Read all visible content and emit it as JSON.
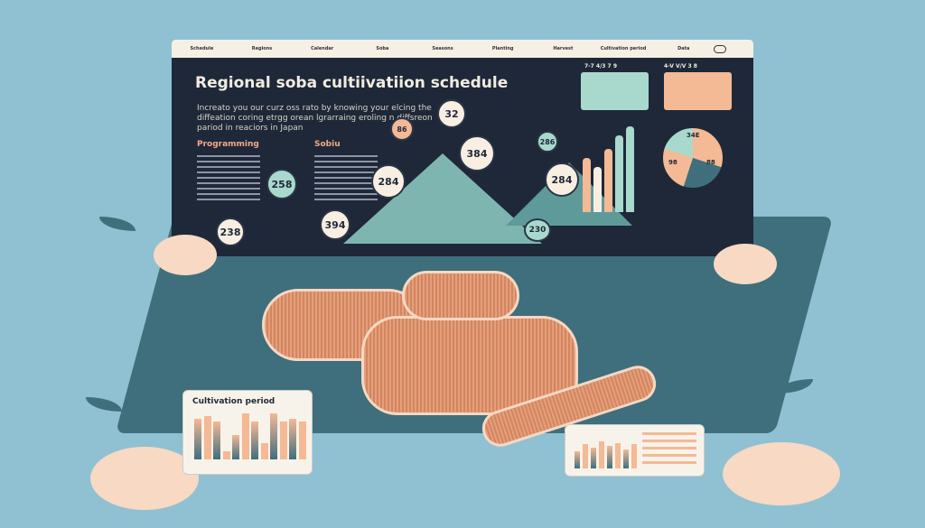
{
  "nav": {
    "items": [
      "Schedule",
      "Regions",
      "Calendar",
      "Soba",
      "Seasons",
      "Planting",
      "Harvest",
      "Cultivation period",
      "Data"
    ]
  },
  "header": {
    "title": "Regional soba cultiivatiion schedule",
    "subtitle": "Increato you our curz oss rato by knowing your elcing the diffeation coring etrgg orean lgrarraing eroling n diffsreon pariod in reaciors in Japan"
  },
  "sections": [
    {
      "label": "Programming"
    },
    {
      "label": "Sobiu"
    }
  ],
  "bubbles": [
    "32",
    "86",
    "384",
    "284",
    "258",
    "394",
    "284",
    "286",
    "238",
    "230"
  ],
  "calendars": [
    {
      "label": "7-7 4/3 7 9",
      "color": "#a9d9cc"
    },
    {
      "label": "4-V V/V 3 8",
      "color": "#f4b995"
    }
  ],
  "pie": {
    "labels": [
      "34E",
      "98",
      "88"
    ]
  },
  "bottom_left_card": {
    "title": "Cultivation period",
    "values": [
      0.75,
      0.8,
      0.7,
      0.15,
      0.45,
      0.85,
      0.7,
      0.3,
      0.85,
      0.7,
      0.75,
      0.7
    ]
  },
  "bottom_right_card": {
    "values": [
      0.5,
      0.7,
      0.6,
      0.8,
      0.65,
      0.75,
      0.55,
      0.7
    ]
  },
  "colors": {
    "navy": "#1e2838",
    "teal": "#3f6f7d",
    "mint": "#a9d9cc",
    "peach": "#f4b995",
    "background": "#8fc1d2"
  }
}
